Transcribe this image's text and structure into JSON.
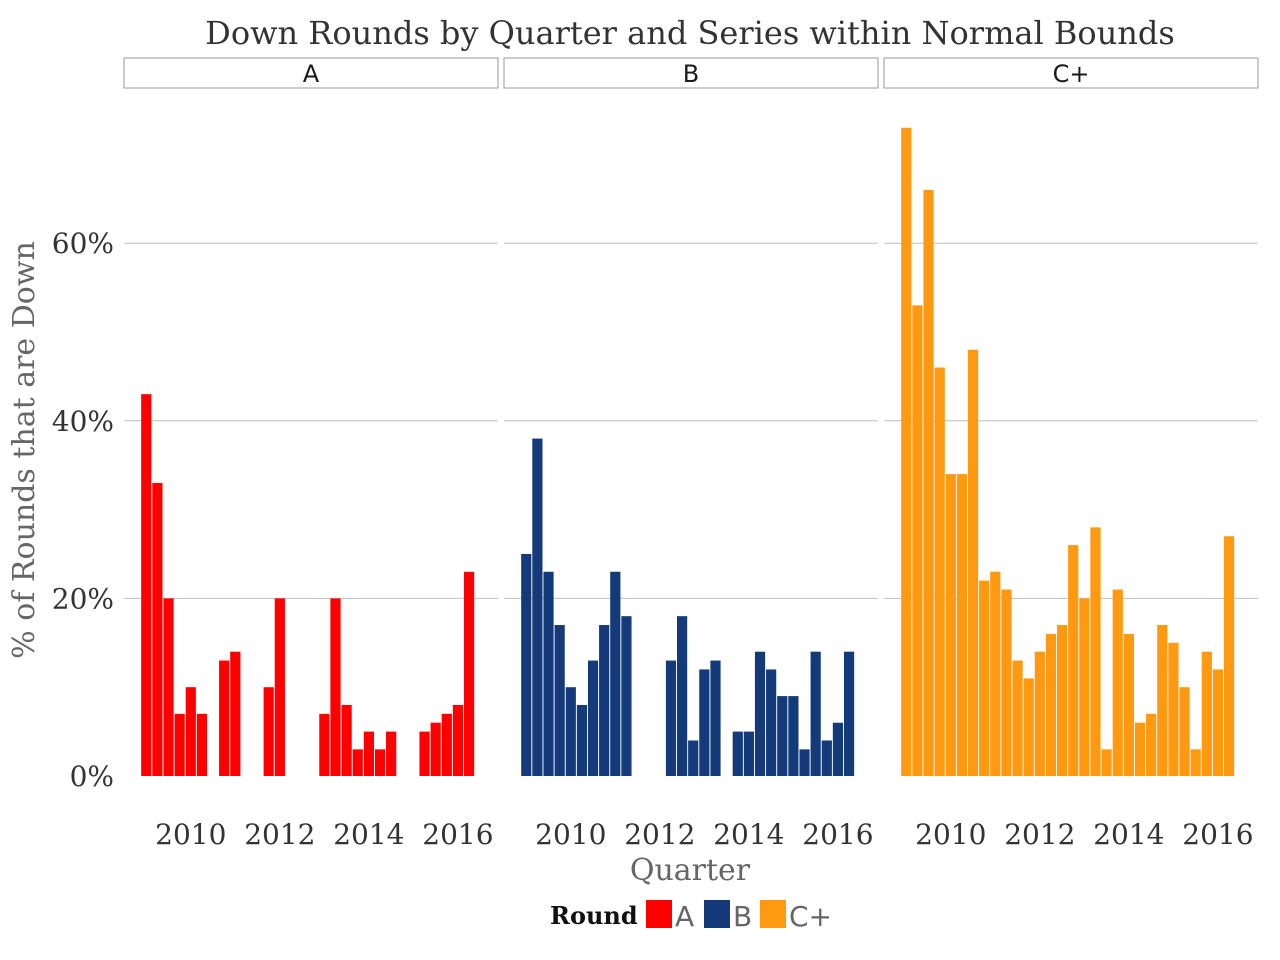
{
  "chart_data": {
    "type": "bar",
    "title": "Down Rounds by Quarter and Series within Normal Bounds",
    "xlabel": "Quarter",
    "ylabel": "% of Rounds that are Down",
    "ylim": [
      0,
      0.75
    ],
    "y_ticks": [
      0,
      0.2,
      0.4,
      0.6
    ],
    "y_tick_labels": [
      "0%",
      "20%",
      "40%",
      "60%"
    ],
    "x_ticks": [
      2010,
      2012,
      2014,
      2016
    ],
    "x_tick_labels": [
      "2010",
      "2012",
      "2014",
      "2016"
    ],
    "xlim": [
      2008.5,
      2016.9
    ],
    "grid": true,
    "legend": {
      "title": "Round",
      "position": "bottom",
      "entries": [
        "A",
        "B",
        "C+"
      ]
    },
    "x": [
      2009.0,
      2009.25,
      2009.5,
      2009.75,
      2010.0,
      2010.25,
      2010.5,
      2010.75,
      2011.0,
      2011.25,
      2011.5,
      2011.75,
      2012.0,
      2012.25,
      2012.5,
      2012.75,
      2013.0,
      2013.25,
      2013.5,
      2013.75,
      2014.0,
      2014.25,
      2014.5,
      2014.75,
      2015.0,
      2015.25,
      2015.5,
      2015.75,
      2016.0,
      2016.25,
      2016.5
    ],
    "facets": [
      {
        "name": "A",
        "color": "#ff0000",
        "values": [
          0.43,
          0.33,
          0.2,
          0.07,
          0.1,
          0.07,
          0,
          0.13,
          0.14,
          0,
          0,
          0.1,
          0.2,
          0,
          0,
          0,
          0.07,
          0.2,
          0.08,
          0.03,
          0.05,
          0.03,
          0.05,
          0,
          0,
          0.05,
          0.06,
          0.07,
          0.08,
          0.23,
          0
        ]
      },
      {
        "name": "B",
        "color": "#143a7a",
        "values": [
          0.25,
          0.38,
          0.23,
          0.17,
          0.1,
          0.08,
          0.13,
          0.17,
          0.23,
          0.18,
          0,
          0,
          0,
          0.13,
          0.18,
          0.04,
          0.12,
          0.13,
          0,
          0.05,
          0.05,
          0.14,
          0.12,
          0.09,
          0.09,
          0.03,
          0.14,
          0.04,
          0.06,
          0.14,
          0
        ]
      },
      {
        "name": "C+",
        "color": "#ff9912",
        "values": [
          0.73,
          0.53,
          0.66,
          0.46,
          0.34,
          0.34,
          0.48,
          0.22,
          0.23,
          0.21,
          0.13,
          0.11,
          0.14,
          0.16,
          0.17,
          0.26,
          0.2,
          0.28,
          0.03,
          0.21,
          0.16,
          0.06,
          0.07,
          0.17,
          0.15,
          0.1,
          0.03,
          0.14,
          0.12,
          0.27,
          0
        ]
      }
    ]
  }
}
